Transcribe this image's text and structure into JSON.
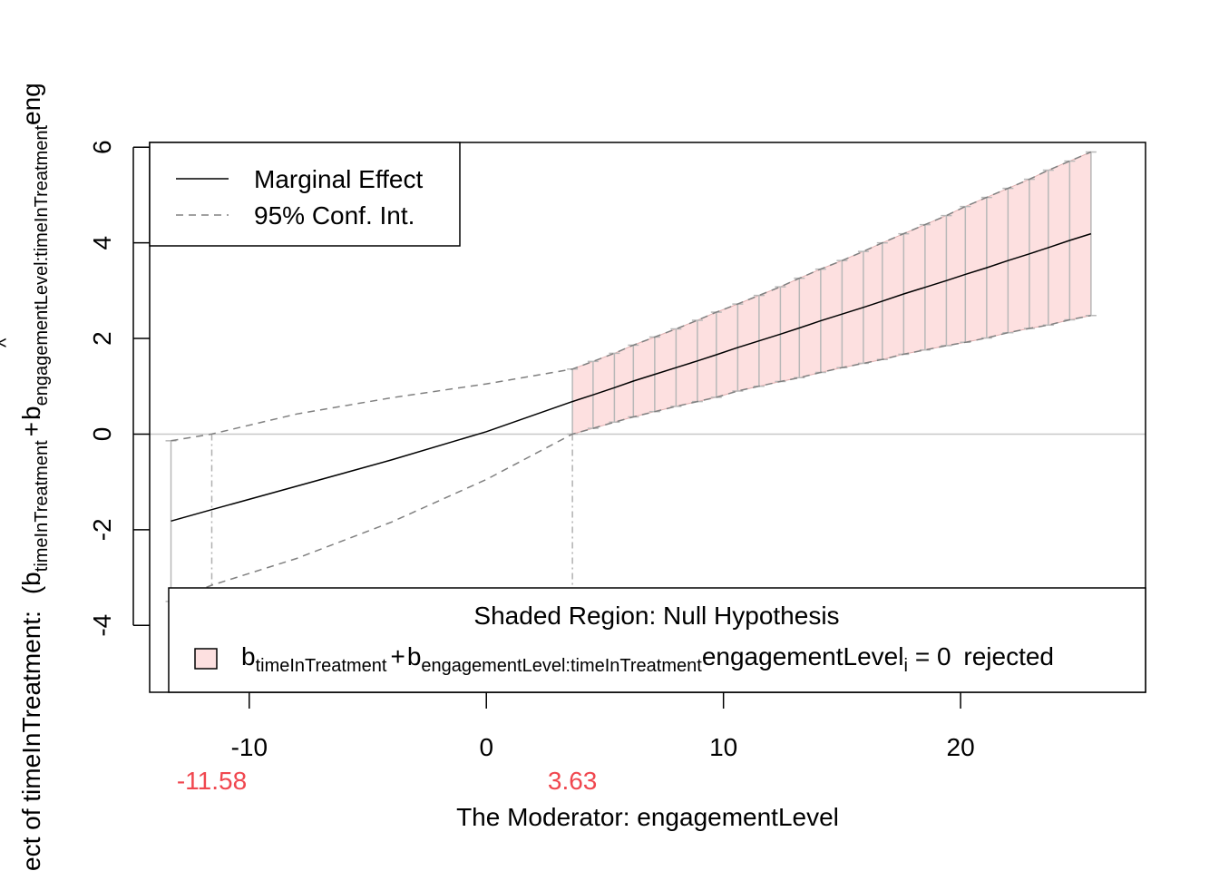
{
  "chart_data": {
    "type": "line",
    "title": "",
    "xlabel": "The Moderator:  engagementLevel",
    "ylabel": {
      "main": "ect of  timeInTreatment:",
      "open": "(",
      "b": "b",
      "sub1": "timeInTreatment",
      "plus": "+",
      "sub2": "engagementLevel:timeInTreatment",
      "tail": "eng",
      "hat": "^"
    },
    "xlim": [
      -14.2,
      27.8
    ],
    "ylim": [
      -5.4,
      6.1
    ],
    "x_ticks": [
      -10,
      0,
      10,
      20
    ],
    "y_ticks": [
      -4,
      -2,
      0,
      2,
      4,
      6
    ],
    "x_tick_labels": [
      "-10",
      "0",
      "10",
      "20"
    ],
    "y_tick_labels": [
      "-4",
      "-2",
      "0",
      "2",
      "4",
      "6"
    ],
    "zero_line": true,
    "grid": false,
    "crossover_points": [
      -11.58,
      3.63
    ],
    "crossover_labels": [
      "-11.58",
      "3.63"
    ],
    "x": [
      -13.3,
      -11.58,
      -8,
      -4,
      0,
      3.63,
      4.5,
      5.4,
      6.2,
      7.1,
      8,
      8.9,
      9.7,
      10.6,
      11.5,
      12.4,
      13.2,
      14.1,
      15,
      15.9,
      16.7,
      17.6,
      18.5,
      19.4,
      20.2,
      21.1,
      22,
      22.9,
      23.7,
      24.6,
      25.5
    ],
    "series": [
      {
        "name": "Marginal Effect",
        "values": [
          -1.82,
          -1.58,
          -1.09,
          -0.54,
          0.05,
          0.68,
          0.82,
          0.97,
          1.11,
          1.25,
          1.39,
          1.53,
          1.66,
          1.81,
          1.95,
          2.09,
          2.22,
          2.37,
          2.51,
          2.65,
          2.78,
          2.93,
          3.07,
          3.21,
          3.34,
          3.48,
          3.63,
          3.77,
          3.9,
          4.05,
          4.19
        ]
      },
      {
        "name": "95% Conf. Int.",
        "values": [
          -0.14,
          0.0,
          0.42,
          0.76,
          1.05,
          1.36,
          1.52,
          1.69,
          1.86,
          2.03,
          2.2,
          2.38,
          2.55,
          2.72,
          2.9,
          3.08,
          3.26,
          3.45,
          3.63,
          3.82,
          4.0,
          4.19,
          4.38,
          4.57,
          4.76,
          4.95,
          5.14,
          5.33,
          5.52,
          5.71,
          5.9
        ]
      },
      {
        "name": "",
        "values": [
          -3.5,
          -3.16,
          -2.6,
          -1.84,
          -0.95,
          0.0,
          0.12,
          0.25,
          0.36,
          0.47,
          0.58,
          0.68,
          0.77,
          0.9,
          1.0,
          1.1,
          1.18,
          1.29,
          1.39,
          1.48,
          1.56,
          1.67,
          1.76,
          1.85,
          1.92,
          2.01,
          2.12,
          2.21,
          2.28,
          2.39,
          2.48
        ]
      }
    ],
    "legend_top": {
      "position": "top-left",
      "entries": [
        "Marginal Effect",
        "95% Conf. Int."
      ]
    },
    "legend_bottom": {
      "position": "bottom",
      "title": "Shaded Region: Null Hypothesis",
      "b1": "b",
      "sub1": "timeInTreatment",
      "plus": "+",
      "b2": "b",
      "sub2": "engagementLevel:timeInTreatment",
      "term": "engagementLevel",
      "sub3": "i",
      "eq": "= 0",
      "tail": " rejected"
    },
    "colors": {
      "line": "#000000",
      "ci": "#808080",
      "shade": "#fde0e0",
      "shade_edge": "#e0b0b0",
      "whisker": "#b8b8b8",
      "zero": "#c8c8c8",
      "crossover_text": "#f0474f"
    }
  }
}
